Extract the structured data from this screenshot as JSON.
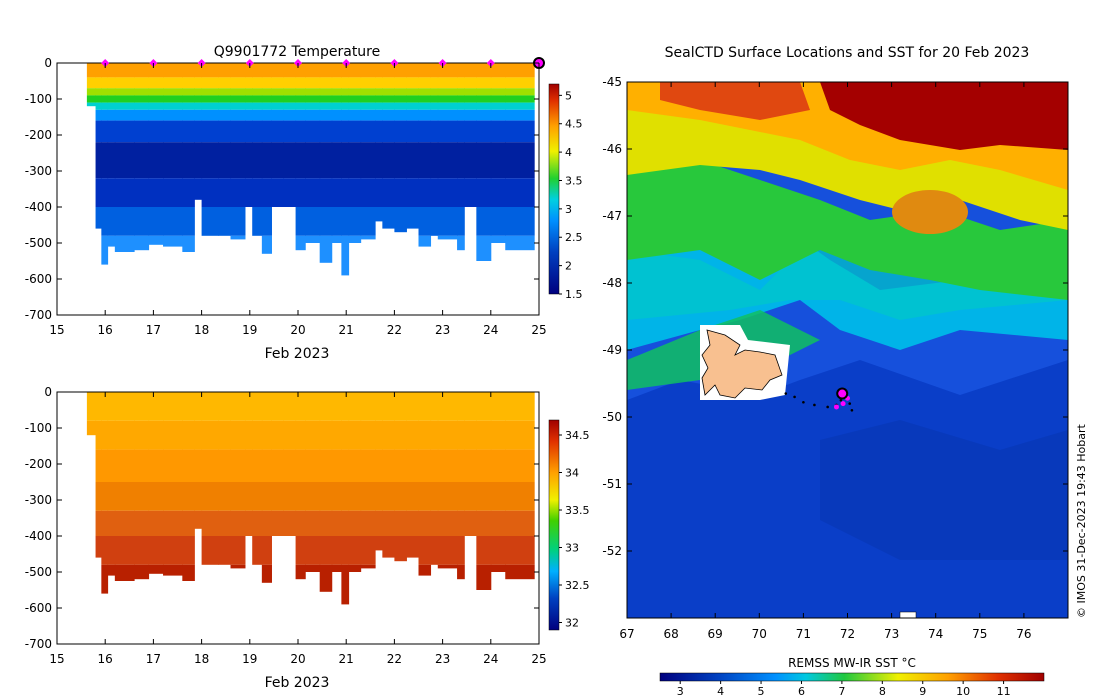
{
  "chart_data": [
    {
      "type": "heatmap",
      "title": "Q9901772  Temperature",
      "xlabel": "Feb 2023",
      "ylabel": "",
      "xlim": [
        15,
        25
      ],
      "ylim": [
        -700,
        0
      ],
      "x_ticks": [
        "15",
        "16",
        "17",
        "18",
        "19",
        "20",
        "21",
        "22",
        "23",
        "24",
        "25"
      ],
      "y_ticks": [
        "0",
        "-100",
        "-200",
        "-300",
        "-400",
        "-500",
        "-600",
        "-700"
      ],
      "colorbar": {
        "min": 1.5,
        "max": 5.2,
        "ticks": [
          "1.5",
          "2",
          "2.5",
          "3",
          "3.5",
          "4",
          "4.5",
          "5"
        ]
      },
      "surface_markers_day": [
        16,
        17,
        18,
        19,
        20,
        21,
        22,
        23,
        24
      ],
      "latest_marker_day": 25,
      "profiles": [
        {
          "day": 15.62,
          "max_depth": 120
        },
        {
          "day": 15.8,
          "max_depth": 460
        },
        {
          "day": 15.92,
          "max_depth": 560
        },
        {
          "day": 16.05,
          "max_depth": 510
        },
        {
          "day": 16.2,
          "max_depth": 525
        },
        {
          "day": 16.6,
          "max_depth": 520
        },
        {
          "day": 16.9,
          "max_depth": 505
        },
        {
          "day": 17.2,
          "max_depth": 510
        },
        {
          "day": 17.6,
          "max_depth": 525
        },
        {
          "day": 17.85,
          "max_depth": 380
        },
        {
          "day": 18.0,
          "max_depth": 480
        },
        {
          "day": 18.35,
          "max_depth": 480
        },
        {
          "day": 18.6,
          "max_depth": 490
        },
        {
          "day": 18.9,
          "max_depth": 400
        },
        {
          "day": 19.05,
          "max_depth": 480
        },
        {
          "day": 19.25,
          "max_depth": 530
        },
        {
          "day": 19.45,
          "max_depth": 400
        },
        {
          "day": 19.7,
          "max_depth": 400
        },
        {
          "day": 19.95,
          "max_depth": 520
        },
        {
          "day": 20.15,
          "max_depth": 500
        },
        {
          "day": 20.45,
          "max_depth": 555
        },
        {
          "day": 20.7,
          "max_depth": 500
        },
        {
          "day": 20.9,
          "max_depth": 590
        },
        {
          "day": 21.05,
          "max_depth": 500
        },
        {
          "day": 21.3,
          "max_depth": 490
        },
        {
          "day": 21.6,
          "max_depth": 440
        },
        {
          "day": 21.75,
          "max_depth": 460
        },
        {
          "day": 22.0,
          "max_depth": 470
        },
        {
          "day": 22.25,
          "max_depth": 460
        },
        {
          "day": 22.5,
          "max_depth": 510
        },
        {
          "day": 22.75,
          "max_depth": 480
        },
        {
          "day": 22.9,
          "max_depth": 490
        },
        {
          "day": 23.3,
          "max_depth": 520
        },
        {
          "day": 23.45,
          "max_depth": 400
        },
        {
          "day": 23.7,
          "max_depth": 550
        },
        {
          "day": 24.0,
          "max_depth": 500
        },
        {
          "day": 24.3,
          "max_depth": 520
        }
      ]
    },
    {
      "type": "heatmap",
      "title": "",
      "xlabel": "Feb 2023",
      "ylabel": "",
      "xlim": [
        15,
        25
      ],
      "ylim": [
        -700,
        0
      ],
      "x_ticks": [
        "15",
        "16",
        "17",
        "18",
        "19",
        "20",
        "21",
        "22",
        "23",
        "24",
        "25"
      ],
      "y_ticks": [
        "0",
        "-100",
        "-200",
        "-300",
        "-400",
        "-500",
        "-600",
        "-700"
      ],
      "colorbar": {
        "min": 31.9,
        "max": 34.7,
        "ticks": [
          "32",
          "32.5",
          "33",
          "33.5",
          "34",
          "34.5"
        ]
      }
    },
    {
      "type": "heatmap",
      "title": "SealCTD Surface Locations and SST for 20 Feb 2023",
      "xlabel": "",
      "ylabel": "",
      "xlim": [
        67,
        77
      ],
      "ylim": [
        -53,
        -45
      ],
      "x_ticks": [
        "67",
        "68",
        "69",
        "70",
        "71",
        "72",
        "73",
        "74",
        "75",
        "76"
      ],
      "y_ticks": [
        "-45",
        "-46",
        "-47",
        "-48",
        "-49",
        "-50",
        "-51",
        "-52"
      ],
      "colorbar": {
        "label": "REMSS MW-IR SST °C",
        "min": 2.5,
        "max": 12,
        "ticks": [
          "3",
          "4",
          "5",
          "6",
          "7",
          "8",
          "9",
          "10",
          "11"
        ]
      },
      "track": [
        {
          "lon": 70.6,
          "lat": -49.65
        },
        {
          "lon": 70.8,
          "lat": -49.7
        },
        {
          "lon": 71.0,
          "lat": -49.78
        },
        {
          "lon": 71.25,
          "lat": -49.82
        },
        {
          "lon": 71.55,
          "lat": -49.85
        },
        {
          "lon": 71.75,
          "lat": -49.82
        },
        {
          "lon": 71.85,
          "lat": -49.75
        },
        {
          "lon": 71.95,
          "lat": -49.7
        },
        {
          "lon": 72.05,
          "lat": -49.8
        },
        {
          "lon": 72.1,
          "lat": -49.9
        }
      ],
      "surface_points": [
        {
          "lon": 71.75,
          "lat": -49.85
        },
        {
          "lon": 71.9,
          "lat": -49.8
        },
        {
          "lon": 72.0,
          "lat": -49.72
        }
      ],
      "latest_position": {
        "lon": 71.88,
        "lat": -49.65
      },
      "credit": "© IMOS 31-Dec-2023 19:43 Hobart"
    }
  ]
}
